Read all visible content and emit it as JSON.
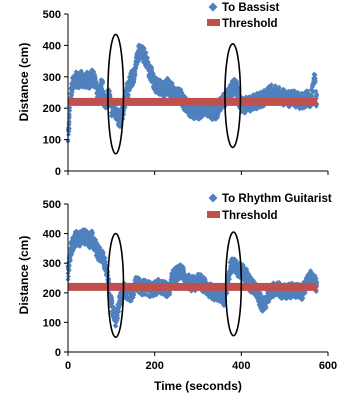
{
  "colors": {
    "series": "#4f81bd",
    "threshold": "#c0504d",
    "axis": "#000000",
    "ellipse": "#000000"
  },
  "chart_data": [
    {
      "type": "scatter",
      "ylabel": "Distance (cm)",
      "xlabel": "",
      "xlim": [
        0,
        600
      ],
      "ylim": [
        0,
        500
      ],
      "xticks": [],
      "yticks": [
        0,
        100,
        200,
        300,
        400,
        500
      ],
      "grid": false,
      "legend_position": "top-right",
      "series": [
        {
          "name": "To Bassist",
          "marker": "diamond",
          "profile": [
            [
              0,
              110
            ],
            [
              3,
              150
            ],
            [
              6,
              240
            ],
            [
              10,
              275
            ],
            [
              15,
              285
            ],
            [
              20,
              292
            ],
            [
              25,
              290
            ],
            [
              30,
              295
            ],
            [
              35,
              282
            ],
            [
              40,
              290
            ],
            [
              45,
              292
            ],
            [
              50,
              285
            ],
            [
              55,
              300
            ],
            [
              60,
              290
            ],
            [
              65,
              270
            ],
            [
              70,
              235
            ],
            [
              75,
              270
            ],
            [
              80,
              265
            ],
            [
              85,
              215
            ],
            [
              90,
              235
            ],
            [
              95,
              240
            ],
            [
              100,
              200
            ],
            [
              105,
              200
            ],
            [
              110,
              190
            ],
            [
              115,
              170
            ],
            [
              120,
              165
            ],
            [
              125,
              180
            ],
            [
              130,
              210
            ],
            [
              135,
              250
            ],
            [
              140,
              265
            ],
            [
              145,
              290
            ],
            [
              150,
              300
            ],
            [
              155,
              320
            ],
            [
              160,
              360
            ],
            [
              165,
              385
            ],
            [
              170,
              380
            ],
            [
              175,
              370
            ],
            [
              180,
              355
            ],
            [
              185,
              330
            ],
            [
              190,
              315
            ],
            [
              195,
              300
            ],
            [
              200,
              280
            ],
            [
              205,
              270
            ],
            [
              210,
              268
            ],
            [
              215,
              265
            ],
            [
              220,
              260
            ],
            [
              225,
              265
            ],
            [
              230,
              272
            ],
            [
              235,
              262
            ],
            [
              240,
              255
            ],
            [
              245,
              245
            ],
            [
              250,
              240
            ],
            [
              255,
              238
            ],
            [
              260,
              235
            ],
            [
              265,
              225
            ],
            [
              270,
              215
            ],
            [
              275,
              205
            ],
            [
              280,
              200
            ],
            [
              285,
              195
            ],
            [
              290,
              192
            ],
            [
              295,
              190
            ],
            [
              300,
              188
            ],
            [
              305,
              192
            ],
            [
              310,
              198
            ],
            [
              315,
              205
            ],
            [
              320,
              200
            ],
            [
              325,
              195
            ],
            [
              330,
              190
            ],
            [
              335,
              188
            ],
            [
              340,
              190
            ],
            [
              345,
              192
            ],
            [
              350,
              205
            ],
            [
              355,
              218
            ],
            [
              360,
              225
            ],
            [
              365,
              230
            ],
            [
              370,
              240
            ],
            [
              375,
              250
            ],
            [
              380,
              265
            ],
            [
              385,
              270
            ],
            [
              390,
              262
            ],
            [
              395,
              230
            ],
            [
              400,
              215
            ],
            [
              405,
              205
            ],
            [
              410,
              210
            ],
            [
              420,
              215
            ],
            [
              430,
              220
            ],
            [
              440,
              225
            ],
            [
              450,
              230
            ],
            [
              460,
              240
            ],
            [
              470,
              250
            ],
            [
              480,
              250
            ],
            [
              490,
              240
            ],
            [
              500,
              232
            ],
            [
              510,
              228
            ],
            [
              520,
              232
            ],
            [
              530,
              225
            ],
            [
              540,
              222
            ],
            [
              550,
              230
            ],
            [
              560,
              228
            ],
            [
              565,
              270
            ],
            [
              570,
              300
            ],
            [
              573,
              230
            ],
            [
              575,
              215
            ]
          ]
        },
        {
          "name": "Threshold",
          "marker": "square",
          "constant_value": 220
        }
      ],
      "annotations": [
        {
          "shape": "ellipse",
          "x_center": 110,
          "y_center": 245,
          "x_halfwidth": 18,
          "y_halfwidth": 190
        },
        {
          "shape": "ellipse",
          "x_center": 380,
          "y_center": 240,
          "x_halfwidth": 18,
          "y_halfwidth": 165
        }
      ]
    },
    {
      "type": "scatter",
      "ylabel": "Distance (cm)",
      "xlabel": "Time (seconds)",
      "xlim": [
        0,
        600
      ],
      "ylim": [
        0,
        500
      ],
      "xticks": [
        0,
        200,
        400,
        600
      ],
      "yticks": [
        0,
        100,
        200,
        300,
        400,
        500
      ],
      "grid": false,
      "legend_position": "top-right",
      "series": [
        {
          "name": "To Rhythm Guitarist",
          "marker": "diamond",
          "profile": [
            [
              0,
              270
            ],
            [
              3,
              300
            ],
            [
              6,
              340
            ],
            [
              10,
              360
            ],
            [
              15,
              380
            ],
            [
              20,
              385
            ],
            [
              25,
              380
            ],
            [
              30,
              385
            ],
            [
              35,
              390
            ],
            [
              40,
              388
            ],
            [
              45,
              380
            ],
            [
              50,
              375
            ],
            [
              55,
              385
            ],
            [
              60,
              370
            ],
            [
              65,
              350
            ],
            [
              70,
              335
            ],
            [
              75,
              330
            ],
            [
              80,
              320
            ],
            [
              85,
              300
            ],
            [
              90,
              270
            ],
            [
              95,
              220
            ],
            [
              100,
              170
            ],
            [
              105,
              130
            ],
            [
              110,
              110
            ],
            [
              115,
              140
            ],
            [
              120,
              180
            ],
            [
              125,
              200
            ],
            [
              130,
              210
            ],
            [
              135,
              205
            ],
            [
              140,
              200
            ],
            [
              145,
              195
            ],
            [
              150,
              205
            ],
            [
              155,
              230
            ],
            [
              160,
              230
            ],
            [
              165,
              225
            ],
            [
              170,
              215
            ],
            [
              175,
              218
            ],
            [
              180,
              220
            ],
            [
              185,
              215
            ],
            [
              190,
              210
            ],
            [
              195,
              212
            ],
            [
              200,
              215
            ],
            [
              205,
              218
            ],
            [
              210,
              225
            ],
            [
              215,
              220
            ],
            [
              220,
              215
            ],
            [
              225,
              212
            ],
            [
              230,
              210
            ],
            [
              235,
              218
            ],
            [
              240,
              250
            ],
            [
              245,
              255
            ],
            [
              250,
              262
            ],
            [
              255,
              270
            ],
            [
              260,
              272
            ],
            [
              265,
              262
            ],
            [
              270,
              255
            ],
            [
              275,
              240
            ],
            [
              280,
              235
            ],
            [
              285,
              230
            ],
            [
              290,
              230
            ],
            [
              295,
              225
            ],
            [
              300,
              240
            ],
            [
              305,
              245
            ],
            [
              310,
              230
            ],
            [
              320,
              220
            ],
            [
              330,
              205
            ],
            [
              340,
              198
            ],
            [
              350,
              195
            ],
            [
              355,
              190
            ],
            [
              360,
              180
            ],
            [
              365,
              200
            ],
            [
              370,
              250
            ],
            [
              375,
              285
            ],
            [
              380,
              300
            ],
            [
              385,
              292
            ],
            [
              390,
              280
            ],
            [
              395,
              275
            ],
            [
              400,
              272
            ],
            [
              405,
              268
            ],
            [
              410,
              260
            ],
            [
              415,
              245
            ],
            [
              420,
              230
            ],
            [
              425,
              222
            ],
            [
              430,
              215
            ],
            [
              435,
              205
            ],
            [
              440,
              190
            ],
            [
              445,
              170
            ],
            [
              450,
              160
            ],
            [
              455,
              165
            ],
            [
              460,
              185
            ],
            [
              470,
              210
            ],
            [
              480,
              215
            ],
            [
              490,
              208
            ],
            [
              500,
              203
            ],
            [
              510,
              205
            ],
            [
              520,
              212
            ],
            [
              530,
              205
            ],
            [
              540,
              200
            ],
            [
              550,
              230
            ],
            [
              560,
              250
            ],
            [
              565,
              240
            ],
            [
              570,
              235
            ],
            [
              573,
              228
            ],
            [
              575,
              220
            ]
          ]
        },
        {
          "name": "Threshold",
          "marker": "square",
          "constant_value": 220
        }
      ],
      "annotations": [
        {
          "shape": "ellipse",
          "x_center": 110,
          "y_center": 225,
          "x_halfwidth": 18,
          "y_halfwidth": 175
        },
        {
          "shape": "ellipse",
          "x_center": 382,
          "y_center": 230,
          "x_halfwidth": 18,
          "y_halfwidth": 175
        }
      ]
    }
  ]
}
